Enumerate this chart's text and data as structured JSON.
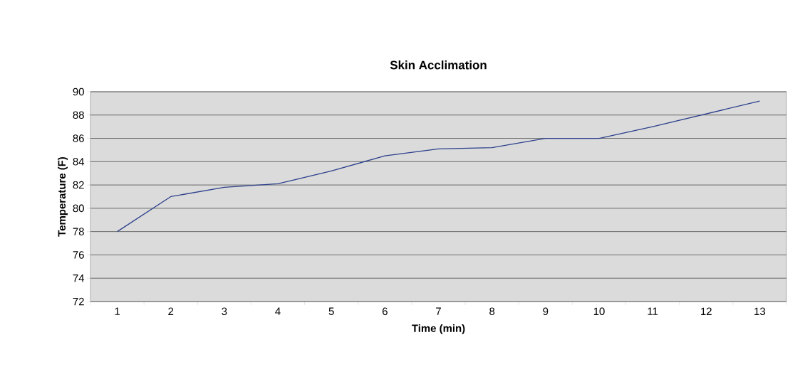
{
  "chart_data": {
    "type": "line",
    "title": "Skin Acclimation",
    "xlabel": "Time (min)",
    "ylabel": "Temperature (F)",
    "categories": [
      "1",
      "2",
      "3",
      "4",
      "5",
      "6",
      "7",
      "8",
      "9",
      "10",
      "11",
      "12",
      "13"
    ],
    "series": [
      {
        "color": "#2b3f8c",
        "values": [
          78.0,
          81.0,
          81.8,
          82.1,
          83.2,
          84.5,
          85.1,
          85.2,
          86.0,
          86.0,
          87.0,
          88.1,
          89.2
        ]
      }
    ],
    "ylim": [
      72,
      90
    ],
    "yticks": [
      72,
      74,
      76,
      78,
      80,
      82,
      84,
      86,
      88,
      90
    ],
    "grid": "y",
    "marker": "none",
    "line_style": "solid",
    "legend": false
  }
}
